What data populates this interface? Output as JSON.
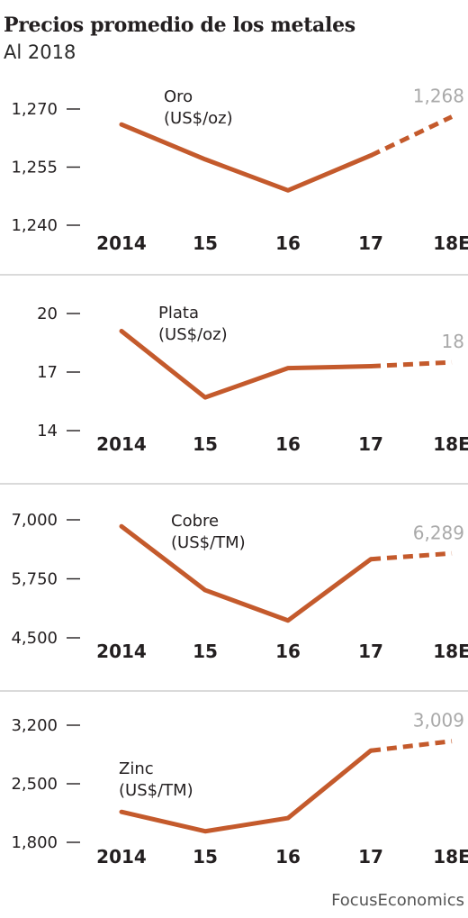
{
  "title": "Precios promedio de los metales",
  "subtitle": "Al 2018",
  "source": "FocusEconomics",
  "colors": {
    "line": "#c45a2c",
    "projection_label": "#a9a9a9",
    "axis": "#231f20",
    "divider": "#b5b5b5"
  },
  "chart_data": [
    {
      "type": "line",
      "metal": "Oro",
      "unit": "(US$/oz)",
      "categories": [
        "2014",
        "15",
        "16",
        "17",
        "18E"
      ],
      "values": [
        1266,
        1257,
        1249,
        1258,
        1268
      ],
      "projected_from_index": 3,
      "ylim": [
        1240,
        1270
      ],
      "yticks": [
        1240,
        1255,
        1270
      ],
      "ytick_labels": [
        "1,240",
        "1,255",
        "1,270"
      ],
      "end_label": "1,268"
    },
    {
      "type": "line",
      "metal": "Plata",
      "unit": "(US$/oz)",
      "categories": [
        "2014",
        "15",
        "16",
        "17",
        "18E"
      ],
      "values": [
        19.1,
        15.7,
        17.2,
        17.3,
        17.5
      ],
      "projected_from_index": 3,
      "ylim": [
        14,
        20
      ],
      "yticks": [
        14,
        17,
        20
      ],
      "ytick_labels": [
        "14",
        "17",
        "20"
      ],
      "end_label": "18"
    },
    {
      "type": "line",
      "metal": "Cobre",
      "unit": "(US$/TM)",
      "categories": [
        "2014",
        "15",
        "16",
        "17",
        "18E"
      ],
      "values": [
        6862,
        5510,
        4868,
        6166,
        6289
      ],
      "projected_from_index": 3,
      "ylim": [
        4500,
        7000
      ],
      "yticks": [
        4500,
        5750,
        7000
      ],
      "ytick_labels": [
        "4,500",
        "5,750",
        "7,000"
      ],
      "end_label": "6,289"
    },
    {
      "type": "line",
      "metal": "Zinc",
      "unit": "(US$/TM)",
      "categories": [
        "2014",
        "15",
        "16",
        "17",
        "18E"
      ],
      "values": [
        2164,
        1932,
        2090,
        2896,
        3009
      ],
      "projected_from_index": 3,
      "ylim": [
        1800,
        3200
      ],
      "yticks": [
        1800,
        2500,
        3200
      ],
      "ytick_labels": [
        "1,800",
        "2,500",
        "3,200"
      ],
      "end_label": "3,009"
    }
  ]
}
